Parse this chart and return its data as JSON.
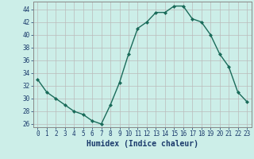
{
  "x": [
    0,
    1,
    2,
    3,
    4,
    5,
    6,
    7,
    8,
    9,
    10,
    11,
    12,
    13,
    14,
    15,
    16,
    17,
    18,
    19,
    20,
    21,
    22,
    23
  ],
  "y": [
    33,
    31,
    30,
    29,
    28,
    27.5,
    26.5,
    26,
    29,
    32.5,
    37,
    41,
    42,
    43.5,
    43.5,
    44.5,
    44.5,
    42.5,
    42,
    40,
    37,
    35,
    31,
    29.5
  ],
  "line_color": "#1a6b5a",
  "marker": "D",
  "marker_size": 2,
  "background_color": "#cceee8",
  "grid_color": "#bbbbbb",
  "xlabel": "Humidex (Indice chaleur)",
  "xlabel_fontsize": 7,
  "xlabel_color": "#1a3a6b",
  "ylim": [
    25.5,
    45.2
  ],
  "xlim": [
    -0.5,
    23.5
  ],
  "yticks": [
    26,
    28,
    30,
    32,
    34,
    36,
    38,
    40,
    42,
    44
  ],
  "xticks": [
    0,
    1,
    2,
    3,
    4,
    5,
    6,
    7,
    8,
    9,
    10,
    11,
    12,
    13,
    14,
    15,
    16,
    17,
    18,
    19,
    20,
    21,
    22,
    23
  ],
  "tick_fontsize": 5.5,
  "tick_color": "#1a3a6b",
  "line_width": 1.0
}
